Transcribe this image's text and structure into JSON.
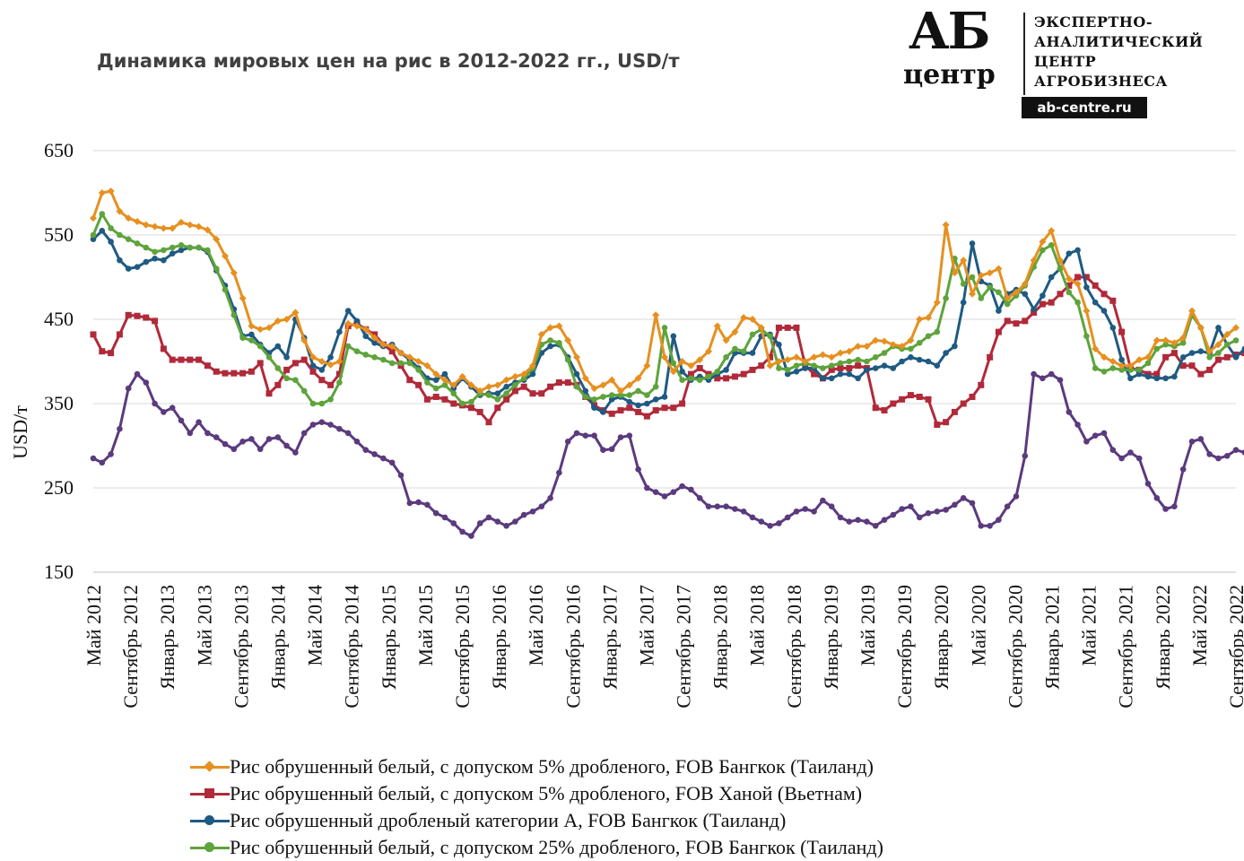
{
  "title": "Динамика мировых цен на рис в 2012-2022 гг., USD/т",
  "logo": {
    "mark": "АБ",
    "word": "центр",
    "lines": [
      "ЭКСПЕРТНО-",
      "АНАЛИТИЧЕСКИЙ",
      "ЦЕНТР",
      "АГРОБИЗНЕСА"
    ],
    "site": "ab-centre.ru"
  },
  "chart_data": {
    "type": "line",
    "ylabel": "USD/т",
    "ylim": [
      150,
      650
    ],
    "yticks": [
      150,
      250,
      350,
      450,
      550,
      650
    ],
    "grid": true,
    "legend_position": "bottom",
    "xtick_labels": [
      "Май 2012",
      "Сентябрь 2012",
      "Январь 2013",
      "Май 2013",
      "Сентябрь 2013",
      "Январь 2014",
      "Май 2014",
      "Сентябрь 2014",
      "Январь 2015",
      "Май 2015",
      "Сентябрь 2015",
      "Январь 2016",
      "Май 2016",
      "Сентябрь 2016",
      "Январь 2017",
      "Май 2017",
      "Сентябрь 2017",
      "Январь 2018",
      "Май 2018",
      "Сентябрь 2018",
      "Январь 2019",
      "Май 2019",
      "Сентябрь 2019",
      "Январь 2020",
      "Май 2020",
      "Сентябрь 2020",
      "Январь 2021",
      "Май 2021",
      "Сентябрь 2021",
      "Январь 2022",
      "Май 2022",
      "Сентябрь 2022"
    ],
    "series": [
      {
        "name": "Рис обрушенный белый, с допуском 5% дробленого, FOB Бангкок (Таиланд)",
        "color": "#E69020",
        "marker": "diamond",
        "values": [
          570,
          600,
          602,
          578,
          570,
          566,
          562,
          560,
          558,
          558,
          565,
          562,
          560,
          556,
          545,
          525,
          505,
          475,
          442,
          438,
          440,
          448,
          450,
          458,
          425,
          405,
          400,
          396,
          400,
          445,
          442,
          438,
          428,
          420,
          418,
          410,
          405,
          400,
          395,
          385,
          378,
          372,
          382,
          372,
          365,
          370,
          372,
          378,
          382,
          385,
          395,
          432,
          440,
          442,
          425,
          405,
          380,
          368,
          372,
          378,
          365,
          372,
          380,
          395,
          455,
          405,
          388,
          400,
          395,
          402,
          412,
          442,
          425,
          435,
          452,
          450,
          440,
          395,
          400,
          402,
          405,
          400,
          405,
          408,
          405,
          410,
          412,
          418,
          418,
          425,
          424,
          420,
          418,
          425,
          450,
          452,
          470,
          562,
          505,
          520,
          480,
          502,
          505,
          510,
          475,
          482,
          492,
          520,
          542,
          555,
          520,
          498,
          492,
          460,
          415,
          405,
          400,
          395,
          395,
          402,
          405,
          425,
          425,
          422,
          428,
          460,
          440,
          412,
          420,
          432,
          440
        ]
      },
      {
        "name": "Рис обрушенный белый, с допуском 5% дробленого, FOB Ханой (Вьетнам)",
        "color": "#B02A3A",
        "marker": "square",
        "values": [
          432,
          412,
          410,
          432,
          455,
          454,
          452,
          448,
          415,
          402,
          402,
          402,
          402,
          395,
          388,
          386,
          386,
          386,
          388,
          398,
          362,
          372,
          390,
          398,
          402,
          388,
          378,
          372,
          385,
          442,
          445,
          438,
          432,
          420,
          412,
          395,
          378,
          372,
          355,
          358,
          355,
          350,
          348,
          345,
          340,
          328,
          345,
          355,
          365,
          370,
          362,
          362,
          370,
          375,
          375,
          372,
          358,
          348,
          342,
          338,
          342,
          345,
          340,
          335,
          342,
          345,
          345,
          350,
          385,
          392,
          385,
          380,
          380,
          382,
          385,
          390,
          395,
          405,
          440,
          440,
          440,
          395,
          385,
          380,
          390,
          392,
          392,
          395,
          392,
          345,
          342,
          350,
          355,
          360,
          358,
          355,
          325,
          328,
          340,
          350,
          358,
          372,
          405,
          435,
          448,
          445,
          448,
          458,
          468,
          470,
          480,
          490,
          500,
          500,
          490,
          480,
          472,
          435,
          392,
          390,
          385,
          385,
          405,
          410,
          395,
          395,
          385,
          390,
          402,
          405,
          408,
          410,
          412,
          400,
          392
        ]
      },
      {
        "name": "Рис обрушенный дробленый категории A, FOB Бангкок (Таиланд)",
        "color": "#1F5A82",
        "marker": "circle",
        "values": [
          545,
          555,
          542,
          520,
          510,
          512,
          518,
          522,
          520,
          528,
          532,
          535,
          535,
          530,
          508,
          490,
          462,
          430,
          432,
          420,
          410,
          418,
          405,
          450,
          428,
          395,
          390,
          405,
          435,
          460,
          448,
          430,
          422,
          418,
          420,
          410,
          402,
          392,
          380,
          378,
          385,
          368,
          380,
          370,
          360,
          362,
          362,
          370,
          375,
          378,
          385,
          410,
          418,
          420,
          405,
          385,
          365,
          345,
          340,
          355,
          358,
          352,
          348,
          350,
          355,
          358,
          430,
          388,
          378,
          382,
          378,
          385,
          390,
          410,
          410,
          410,
          430,
          432,
          420,
          385,
          388,
          392,
          392,
          380,
          380,
          385,
          385,
          380,
          390,
          392,
          395,
          392,
          400,
          405,
          402,
          400,
          395,
          410,
          418,
          470,
          540,
          495,
          490,
          460,
          480,
          485,
          480,
          462,
          478,
          500,
          510,
          528,
          532,
          488,
          470,
          460,
          440,
          402,
          380,
          385,
          382,
          380,
          380,
          382,
          405,
          410,
          412,
          410,
          440,
          420,
          405,
          415,
          420,
          425
        ]
      },
      {
        "name": "Рис обрушенный белый, с допуском 25% дробленого, FOB Бангкок (Таиланд)",
        "color": "#5EA33C",
        "marker": "circle",
        "values": [
          550,
          575,
          558,
          550,
          545,
          540,
          535,
          530,
          532,
          535,
          538,
          535,
          535,
          532,
          510,
          485,
          455,
          428,
          425,
          418,
          405,
          392,
          380,
          378,
          365,
          350,
          350,
          355,
          375,
          418,
          412,
          408,
          405,
          402,
          398,
          398,
          398,
          390,
          375,
          368,
          372,
          362,
          350,
          352,
          362,
          360,
          355,
          362,
          372,
          380,
          392,
          420,
          425,
          422,
          402,
          370,
          358,
          355,
          358,
          360,
          360,
          360,
          365,
          360,
          370,
          440,
          398,
          378,
          380,
          378,
          382,
          388,
          405,
          415,
          412,
          432,
          438,
          430,
          392,
          390,
          395,
          398,
          395,
          392,
          395,
          398,
          400,
          402,
          400,
          405,
          410,
          418,
          415,
          415,
          422,
          430,
          435,
          475,
          522,
          492,
          500,
          475,
          488,
          482,
          468,
          478,
          490,
          512,
          532,
          538,
          510,
          482,
          470,
          430,
          392,
          388,
          392,
          390,
          390,
          390,
          398,
          415,
          420,
          418,
          422,
          455,
          440,
          405,
          410,
          420,
          425
        ]
      },
      {
        "name": "",
        "color": "#5B3A7E",
        "marker": "circle",
        "values": [
          285,
          280,
          290,
          320,
          368,
          385,
          375,
          350,
          340,
          345,
          330,
          315,
          328,
          315,
          310,
          302,
          296,
          305,
          308,
          296,
          308,
          310,
          300,
          292,
          315,
          325,
          328,
          325,
          320,
          315,
          305,
          295,
          290,
          285,
          280,
          265,
          232,
          233,
          230,
          220,
          215,
          208,
          198,
          193,
          208,
          215,
          210,
          205,
          210,
          218,
          222,
          228,
          238,
          268,
          305,
          315,
          312,
          312,
          295,
          296,
          310,
          312,
          272,
          250,
          245,
          240,
          245,
          252,
          248,
          238,
          228,
          228,
          228,
          225,
          222,
          215,
          210,
          205,
          208,
          215,
          222,
          225,
          222,
          235,
          228,
          215,
          210,
          212,
          210,
          205,
          212,
          218,
          225,
          228,
          215,
          220,
          222,
          224,
          230,
          238,
          232,
          205,
          205,
          212,
          228,
          240,
          288,
          385,
          380,
          385,
          378,
          340,
          325,
          305,
          312,
          315,
          295,
          285,
          292,
          285,
          255,
          238,
          225,
          228,
          272,
          305,
          308,
          290,
          285,
          288,
          295,
          292
        ]
      }
    ]
  }
}
